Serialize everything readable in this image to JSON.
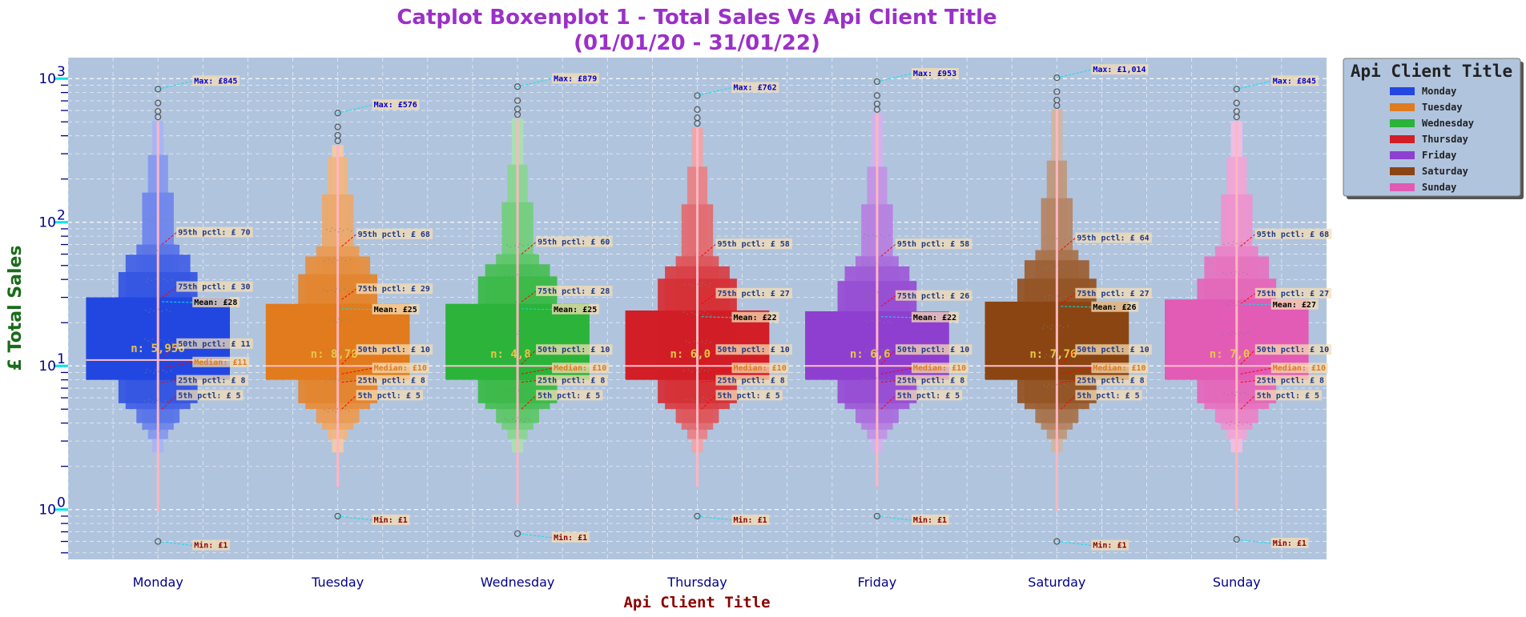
{
  "chart_data": {
    "type": "boxen",
    "title": "Catplot Boxenplot 1 - Total Sales Vs Api Client Title",
    "subtitle": "(01/01/20 - 31/01/22)",
    "xlabel": "Api Client Title",
    "ylabel": "£ Total Sales",
    "yscale": "log",
    "ylim": [
      0.45,
      1400
    ],
    "yticks": [
      {
        "value": 1,
        "label": "10"
      },
      {
        "value": 10,
        "label": "10"
      },
      {
        "value": 100,
        "label": "10"
      },
      {
        "value": 1000,
        "label": "10"
      }
    ],
    "ytick_exponents": [
      "0",
      "1",
      "2",
      "3"
    ],
    "grid": true,
    "legend_title": "Api Client Title",
    "legend_position": "top-right outside",
    "categories": [
      "Monday",
      "Tuesday",
      "Wednesday",
      "Thursday",
      "Friday",
      "Saturday",
      "Sunday"
    ],
    "colors": [
      "#2347e0",
      "#e07b1e",
      "#2bb33a",
      "#d11f27",
      "#8e3fd0",
      "#8b4513",
      "#e15bb5"
    ],
    "series": [
      {
        "name": "Monday",
        "n_label": "n: 5,956",
        "min": 0.6,
        "p5": 5,
        "p25": 8,
        "median": 11,
        "mean": 28,
        "p75": 30,
        "p95": 70,
        "max": 845,
        "ann": {
          "max": "Max: £845",
          "p95": "95th pctl: £ 70",
          "p75": "75th pctl: £ 30",
          "mean": "Mean: £28",
          "p50": "50th pctl: £ 11",
          "p25": "25th pctl: £ 8",
          "median": "Median: £11",
          "p5": "5th pctl: £ 5",
          "min": "Min: £1"
        }
      },
      {
        "name": "Tuesday",
        "n_label": "n: 8,78",
        "min": 0.9,
        "p5": 5,
        "p25": 8,
        "median": 10,
        "mean": 25,
        "p75": 29,
        "p95": 68,
        "max": 576,
        "ann": {
          "max": "Max: £576",
          "p95": "95th pctl: £ 68",
          "p75": "75th pctl: £ 29",
          "mean": "Mean: £25",
          "p50": "50th pctl: £ 10",
          "p25": "25th pctl: £ 8",
          "median": "Median: £10",
          "p5": "5th pctl: £ 5",
          "min": "Min: £1"
        }
      },
      {
        "name": "Wednesday",
        "n_label": "n: 4,8",
        "min": 0.68,
        "p5": 5,
        "p25": 8,
        "median": 10,
        "mean": 25,
        "p75": 28,
        "p95": 60,
        "max": 879,
        "ann": {
          "max": "Max: £879",
          "p95": "95th pctl: £ 60",
          "p75": "75th pctl: £ 28",
          "mean": "Mean: £25",
          "p50": "50th pctl: £ 10",
          "p25": "25th pctl: £ 8",
          "median": "Median: £10",
          "p5": "5th pctl: £ 5",
          "min": "Min: £1"
        }
      },
      {
        "name": "Thursday",
        "n_label": "n: 6,0",
        "min": 0.9,
        "p5": 5,
        "p25": 8,
        "median": 10,
        "mean": 22,
        "p75": 27,
        "p95": 58,
        "max": 762,
        "ann": {
          "max": "Max: £762",
          "p95": "95th pctl: £ 58",
          "p75": "75th pctl: £ 27",
          "mean": "Mean: £22",
          "p50": "50th pctl: £ 10",
          "p25": "25th pctl: £ 8",
          "median": "Median: £10",
          "p5": "5th pctl: £ 5",
          "min": "Min: £1"
        }
      },
      {
        "name": "Friday",
        "n_label": "n: 6,6",
        "min": 0.9,
        "p5": 5,
        "p25": 8,
        "median": 10,
        "mean": 22,
        "p75": 26,
        "p95": 58,
        "max": 953,
        "ann": {
          "max": "Max: £953",
          "p95": "95th pctl: £ 58",
          "p75": "75th pctl: £ 26",
          "mean": "Mean: £22",
          "p50": "50th pctl: £ 10",
          "p25": "25th pctl: £ 8",
          "median": "Median: £10",
          "p5": "5th pctl: £ 5",
          "min": "Min: £1"
        }
      },
      {
        "name": "Saturday",
        "n_label": "n: 7,76",
        "min": 0.6,
        "p5": 5,
        "p25": 8,
        "median": 10,
        "mean": 26,
        "p75": 27,
        "p95": 64,
        "max": 1014,
        "ann": {
          "max": "Max: £1,014",
          "p95": "95th pctl: £ 64",
          "p75": "75th pctl: £ 27",
          "mean": "Mean: £26",
          "p50": "50th pctl: £ 10",
          "p25": "25th pctl: £ 8",
          "median": "Median: £10",
          "p5": "5th pctl: £ 5",
          "min": "Min: £1"
        }
      },
      {
        "name": "Sunday",
        "n_label": "n: 7,0",
        "min": 0.62,
        "p5": 5,
        "p25": 8,
        "median": 10,
        "mean": 27,
        "p75": 27,
        "p95": 68,
        "max": 845,
        "ann": {
          "max": "Max: £845",
          "p95": "95th pctl: £ 68",
          "p75": "75th pctl: £ 27",
          "mean": "Mean: £27",
          "p50": "50th pctl: £ 10",
          "p25": "25th pctl: £ 8",
          "median": "Median: £10",
          "p5": "5th pctl: £ 5",
          "min": "Min: £1"
        }
      }
    ]
  }
}
